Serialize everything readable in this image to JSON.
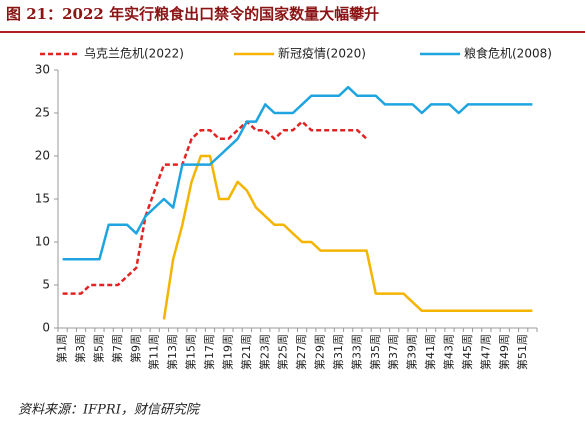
{
  "chart_data": {
    "type": "line",
    "title": "图 21：2022 年实行粮食出口禁令的国家数量大幅攀升",
    "source": "资料来源：IFPRI，财信研究院",
    "categories": [
      "第1周",
      null,
      "第3周",
      null,
      "第5周",
      null,
      "第7周",
      null,
      "第9周",
      null,
      "第11周",
      null,
      "第13周",
      null,
      "第15周",
      null,
      "第17周",
      null,
      "第19周",
      null,
      "第21周",
      null,
      "第23周",
      null,
      "第25周",
      null,
      "第27周",
      null,
      "第29周",
      null,
      "第31周",
      null,
      "第33周",
      null,
      "第35周",
      null,
      "第37周",
      null,
      "第39周",
      null,
      "第41周",
      null,
      "第43周",
      null,
      "第45周",
      null,
      "第47周",
      null,
      "第49周",
      null,
      "第51周",
      null
    ],
    "series": [
      {
        "name": "乌克兰危机(2022)",
        "color": "#e32222",
        "dashed": true,
        "values": [
          4,
          4,
          4,
          5,
          5,
          5,
          5,
          6,
          7,
          13,
          16,
          19,
          19,
          19,
          22,
          23,
          23,
          22,
          22,
          23,
          24,
          23,
          23,
          22,
          23,
          23,
          24,
          23,
          23,
          23,
          23,
          23,
          23,
          22,
          null,
          null,
          null,
          null,
          null,
          null,
          null,
          null,
          null,
          null,
          null,
          null,
          null,
          null,
          null,
          null,
          null,
          null
        ]
      },
      {
        "name": "新冠疫情(2020)",
        "color": "#f5b400",
        "dashed": false,
        "values": [
          null,
          null,
          null,
          null,
          null,
          null,
          null,
          null,
          null,
          null,
          null,
          1,
          8,
          12,
          17,
          20,
          20,
          15,
          15,
          17,
          16,
          14,
          13,
          12,
          12,
          11,
          10,
          10,
          9,
          9,
          9,
          9,
          9,
          9,
          4,
          4,
          4,
          4,
          3,
          2,
          2,
          2,
          2,
          2,
          2,
          2,
          2,
          2,
          2,
          2,
          2,
          2
        ]
      },
      {
        "name": "粮食危机(2008)",
        "color": "#1ea5e0",
        "dashed": false,
        "values": [
          8,
          8,
          8,
          8,
          8,
          12,
          12,
          12,
          11,
          13,
          14,
          15,
          14,
          19,
          19,
          19,
          19,
          20,
          21,
          22,
          24,
          24,
          26,
          25,
          25,
          25,
          26,
          27,
          27,
          27,
          27,
          28,
          27,
          27,
          27,
          26,
          26,
          26,
          26,
          25,
          26,
          26,
          26,
          25,
          26,
          26,
          26,
          26,
          26,
          26,
          26,
          26
        ]
      }
    ],
    "ylim": [
      0,
      30
    ],
    "yticks": [
      0,
      5,
      10,
      15,
      20,
      25,
      30
    ],
    "legend": "top"
  }
}
